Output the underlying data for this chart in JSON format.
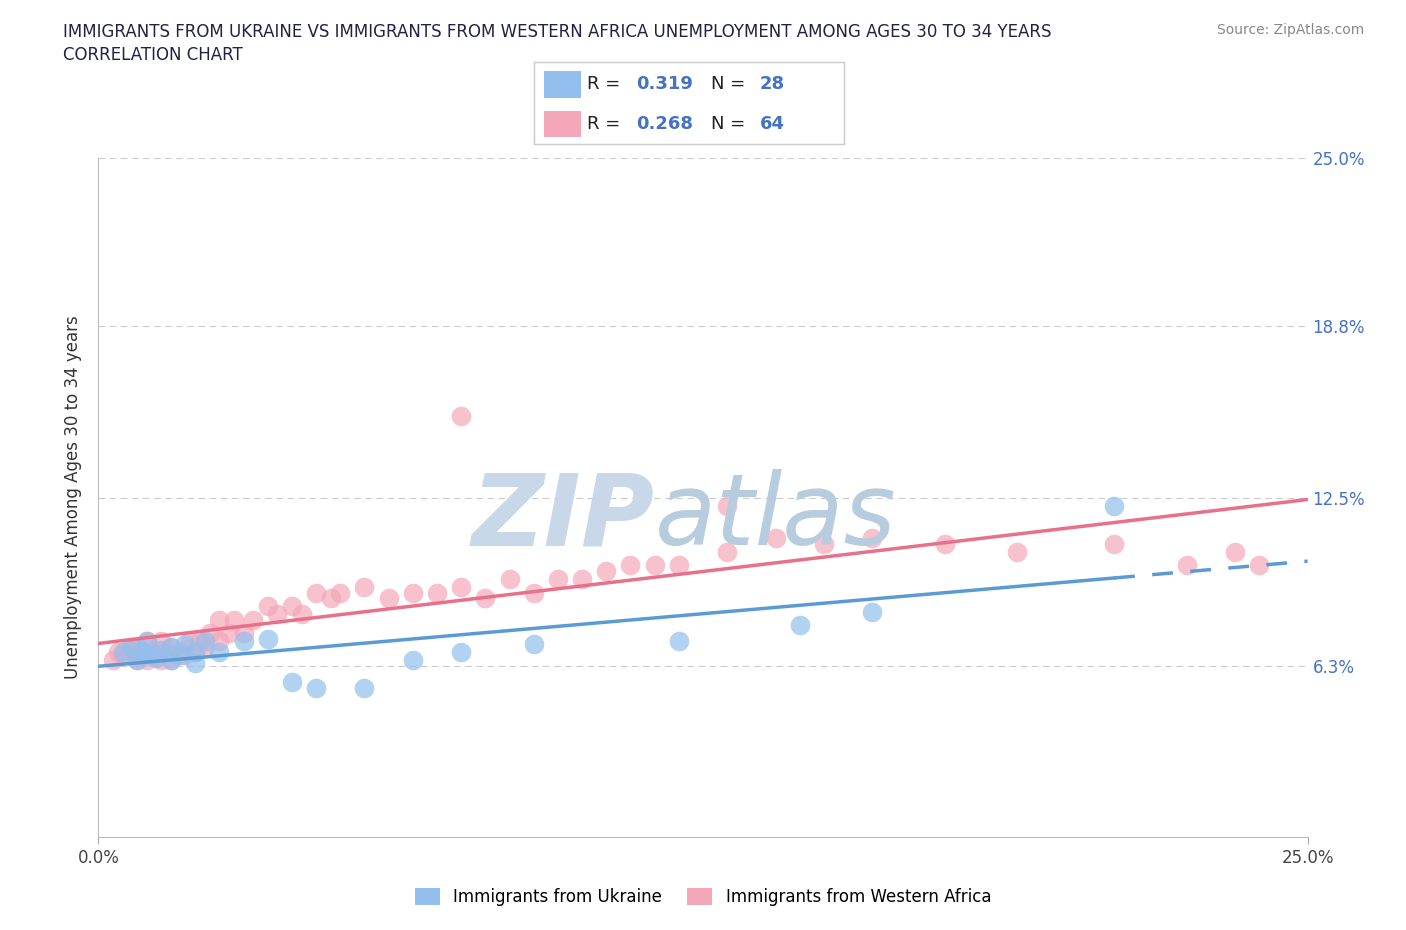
{
  "title_line1": "IMMIGRANTS FROM UKRAINE VS IMMIGRANTS FROM WESTERN AFRICA UNEMPLOYMENT AMONG AGES 30 TO 34 YEARS",
  "title_line2": "CORRELATION CHART",
  "source_text": "Source: ZipAtlas.com",
  "ylabel": "Unemployment Among Ages 30 to 34 years",
  "xlim": [
    0.0,
    0.25
  ],
  "ylim": [
    0.0,
    0.25
  ],
  "ytick_labels": [
    "6.3%",
    "12.5%",
    "18.8%",
    "25.0%"
  ],
  "ytick_values": [
    0.063,
    0.125,
    0.188,
    0.25
  ],
  "legend_label_ukraine": "Immigrants from Ukraine",
  "legend_label_africa": "Immigrants from Western Africa",
  "R_ukraine": "0.319",
  "N_ukraine": "28",
  "R_africa": "0.268",
  "N_africa": "64",
  "ukraine_color": "#92BFED",
  "africa_color": "#F4A7B9",
  "ukraine_line_color": "#5B9BD5",
  "africa_line_color": "#E8708A",
  "watermark_zip_color": "#C8D8E8",
  "watermark_atlas_color": "#B8CCE0",
  "grid_color": "#CCCCCC",
  "ukraine_scatter_x": [
    0.005,
    0.007,
    0.008,
    0.009,
    0.01,
    0.01,
    0.012,
    0.013,
    0.015,
    0.015,
    0.017,
    0.018,
    0.02,
    0.02,
    0.022,
    0.025,
    0.03,
    0.035,
    0.04,
    0.045,
    0.055,
    0.065,
    0.075,
    0.09,
    0.12,
    0.145,
    0.16,
    0.21
  ],
  "ukraine_scatter_y": [
    0.068,
    0.07,
    0.065,
    0.068,
    0.067,
    0.072,
    0.066,
    0.069,
    0.065,
    0.07,
    0.067,
    0.071,
    0.064,
    0.068,
    0.072,
    0.068,
    0.072,
    0.073,
    0.057,
    0.055,
    0.055,
    0.065,
    0.068,
    0.071,
    0.072,
    0.078,
    0.083,
    0.122
  ],
  "africa_scatter_x": [
    0.003,
    0.004,
    0.005,
    0.006,
    0.007,
    0.008,
    0.008,
    0.009,
    0.01,
    0.01,
    0.011,
    0.012,
    0.013,
    0.013,
    0.014,
    0.015,
    0.015,
    0.016,
    0.017,
    0.018,
    0.019,
    0.02,
    0.021,
    0.022,
    0.023,
    0.025,
    0.025,
    0.027,
    0.028,
    0.03,
    0.032,
    0.035,
    0.037,
    0.04,
    0.042,
    0.045,
    0.048,
    0.05,
    0.055,
    0.06,
    0.065,
    0.07,
    0.075,
    0.08,
    0.085,
    0.09,
    0.095,
    0.1,
    0.105,
    0.11,
    0.115,
    0.12,
    0.13,
    0.14,
    0.15,
    0.16,
    0.175,
    0.19,
    0.21,
    0.225,
    0.235,
    0.24,
    0.075,
    0.13
  ],
  "africa_scatter_y": [
    0.065,
    0.068,
    0.067,
    0.069,
    0.068,
    0.065,
    0.07,
    0.068,
    0.065,
    0.072,
    0.068,
    0.067,
    0.065,
    0.072,
    0.068,
    0.065,
    0.07,
    0.067,
    0.068,
    0.067,
    0.072,
    0.068,
    0.072,
    0.07,
    0.075,
    0.072,
    0.08,
    0.075,
    0.08,
    0.075,
    0.08,
    0.085,
    0.082,
    0.085,
    0.082,
    0.09,
    0.088,
    0.09,
    0.092,
    0.088,
    0.09,
    0.09,
    0.092,
    0.088,
    0.095,
    0.09,
    0.095,
    0.095,
    0.098,
    0.1,
    0.1,
    0.1,
    0.105,
    0.11,
    0.108,
    0.11,
    0.108,
    0.105,
    0.108,
    0.1,
    0.105,
    0.1,
    0.155,
    0.122
  ]
}
